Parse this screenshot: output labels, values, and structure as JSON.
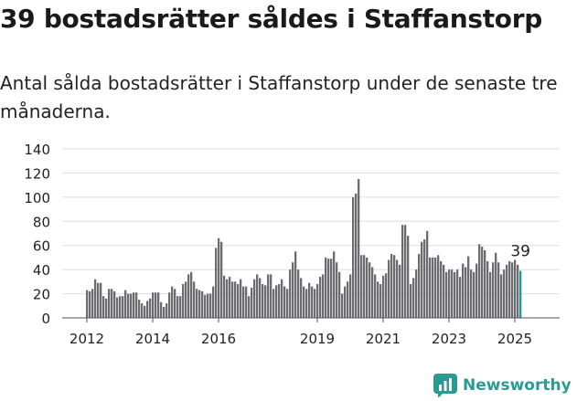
{
  "title": "39 bostadsrätter såldes i Staffanstorp",
  "subtitle": "Antal sålda bostadsrätter i Staffanstorp under de senaste tre månaderna.",
  "brand": "Newsworthy",
  "colors": {
    "bar": "#6b6b70",
    "highlight": "#1f9a95",
    "grid": "#dddddd",
    "axis": "#555555",
    "text": "#222222",
    "brand": "#2a9a93"
  },
  "chart_data": {
    "type": "bar",
    "ylim": [
      0,
      140
    ],
    "yticks": [
      0,
      20,
      40,
      60,
      80,
      100,
      120,
      140
    ],
    "xticks": [
      "2012",
      "2014",
      "2016",
      "2019",
      "2021",
      "2023",
      "2025"
    ],
    "grid": true,
    "annotation": "39",
    "series_unit": "monthly",
    "start_month": "2012-01",
    "values": [
      23,
      22,
      24,
      32,
      29,
      29,
      18,
      16,
      24,
      24,
      22,
      17,
      18,
      18,
      23,
      20,
      20,
      21,
      21,
      15,
      12,
      10,
      14,
      16,
      21,
      21,
      21,
      13,
      9,
      12,
      21,
      26,
      24,
      18,
      18,
      28,
      30,
      36,
      38,
      30,
      24,
      23,
      22,
      19,
      20,
      20,
      26,
      58,
      66,
      63,
      35,
      32,
      34,
      30,
      30,
      28,
      32,
      26,
      26,
      18,
      25,
      32,
      36,
      33,
      28,
      27,
      36,
      36,
      24,
      27,
      28,
      32,
      26,
      24,
      40,
      46,
      55,
      40,
      33,
      26,
      24,
      29,
      26,
      24,
      28,
      34,
      36,
      50,
      49,
      49,
      55,
      46,
      38,
      20,
      26,
      30,
      36,
      100,
      103,
      115,
      52,
      52,
      50,
      46,
      42,
      36,
      30,
      28,
      35,
      37,
      48,
      53,
      52,
      48,
      44,
      77,
      77,
      68,
      28,
      33,
      40,
      53,
      63,
      65,
      72,
      50,
      50,
      50,
      52,
      47,
      44,
      38,
      40,
      40,
      38,
      40,
      34,
      45,
      42,
      51,
      40,
      38,
      45,
      61,
      59,
      56,
      47,
      38,
      46,
      54,
      46,
      36,
      40,
      44,
      47,
      46,
      48,
      44,
      39
    ]
  }
}
